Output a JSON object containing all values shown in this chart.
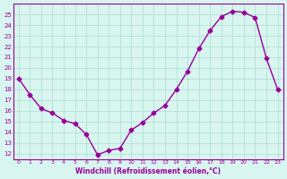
{
  "x": [
    0,
    1,
    2,
    3,
    4,
    5,
    6,
    7,
    8,
    9,
    10,
    11,
    12,
    13,
    14,
    15,
    16,
    17,
    18,
    19,
    20,
    21,
    22,
    23
  ],
  "y": [
    19.0,
    17.5,
    16.2,
    15.8,
    15.1,
    14.8,
    13.8,
    11.9,
    12.3,
    12.5,
    14.2,
    14.9,
    15.8,
    16.5,
    18.0,
    19.7,
    21.8,
    23.5,
    24.8,
    25.3,
    25.2,
    24.7,
    20.9,
    18.0
  ],
  "line_color": "#990099",
  "marker": "D",
  "marker_size": 2.5,
  "bg_color": "#d8f5f0",
  "grid_color": "#aaddcc",
  "xlabel": "Windchill (Refroidissement éolien,°C)",
  "xlabel_color": "#990099",
  "tick_color": "#990099",
  "ylim": [
    11.5,
    26.0
  ],
  "yticks": [
    12,
    13,
    14,
    15,
    16,
    17,
    18,
    19,
    20,
    21,
    22,
    23,
    24,
    25
  ],
  "xticks": [
    0,
    1,
    2,
    3,
    4,
    5,
    6,
    7,
    8,
    9,
    10,
    11,
    12,
    13,
    14,
    15,
    16,
    17,
    18,
    19,
    20,
    21,
    22,
    23
  ],
  "xlim": [
    -0.5,
    23.5
  ]
}
